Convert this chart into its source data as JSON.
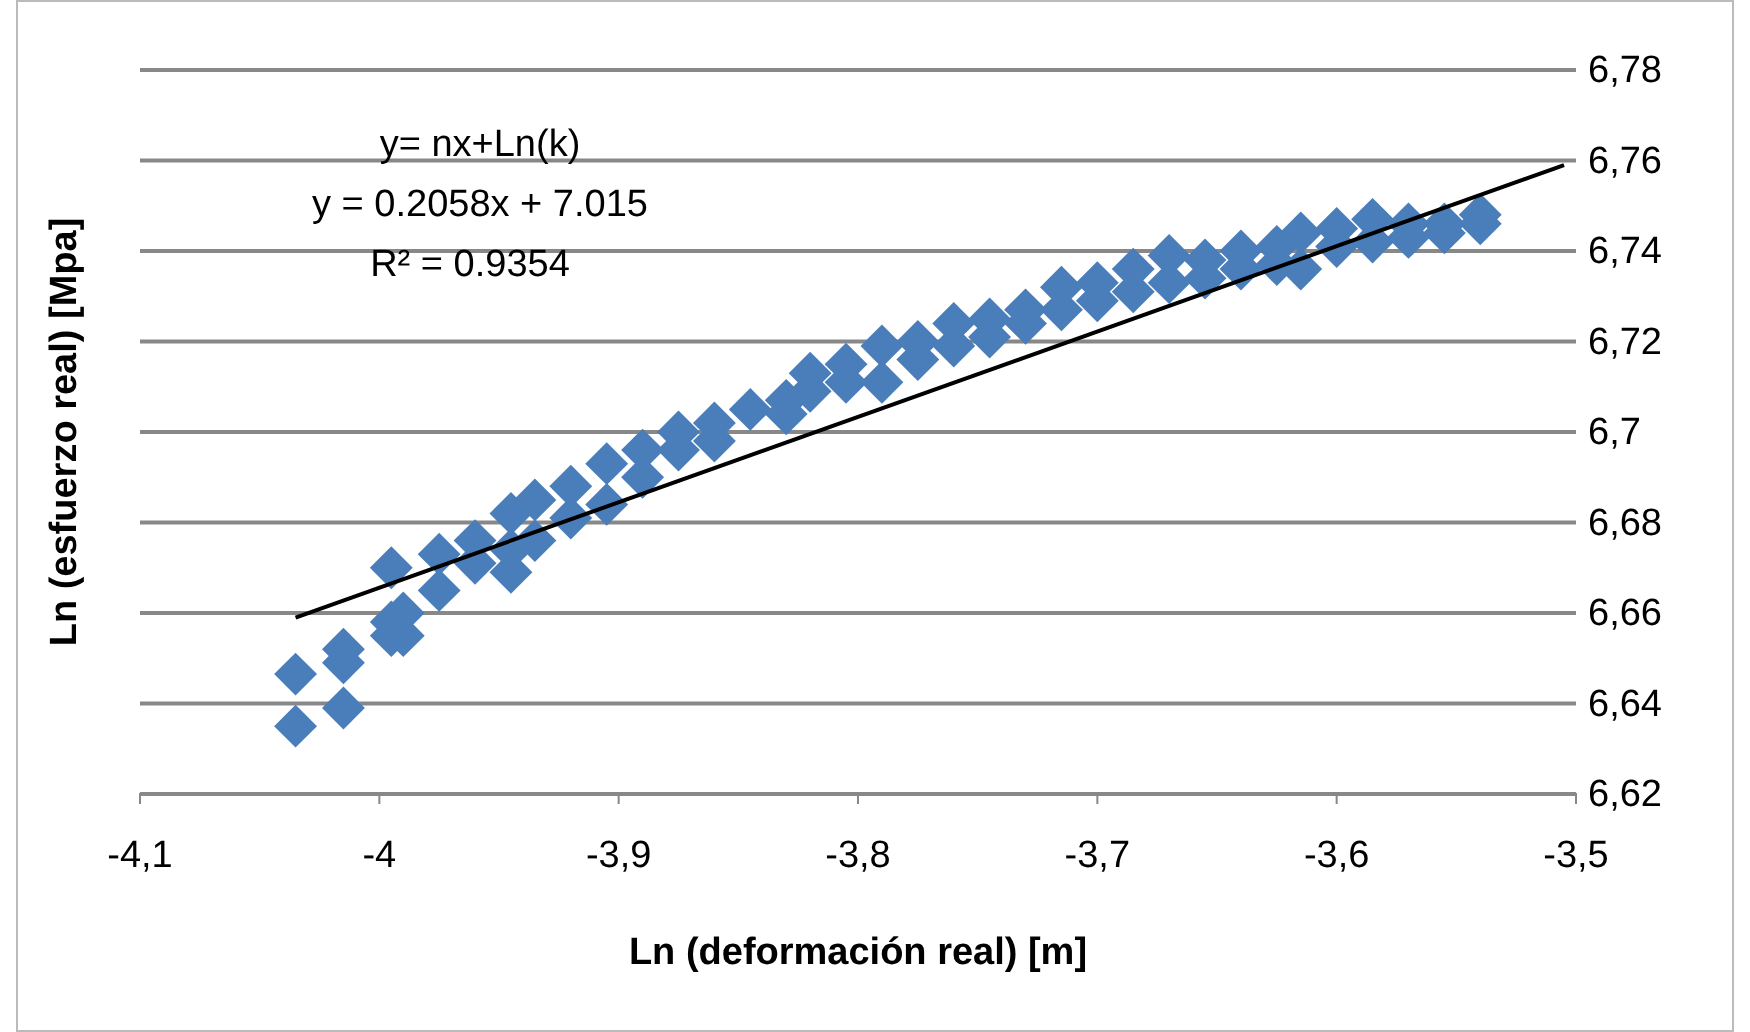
{
  "chart_data": {
    "type": "scatter",
    "xlabel": "Ln (deformación real) [m]",
    "ylabel": "Ln (esfuerzo real)  [Mpa]",
    "xlim": [
      -4.1,
      -3.5
    ],
    "xticks": [
      {
        "value": -4.1,
        "label": "-4,1"
      },
      {
        "value": -4,
        "label": "-4"
      },
      {
        "value": -3.9,
        "label": "-3,9"
      },
      {
        "value": -3.8,
        "label": "-3,8"
      },
      {
        "value": -3.7,
        "label": "-3,7"
      },
      {
        "value": -3.6,
        "label": "-3,6"
      },
      {
        "value": -3.5,
        "label": "-3,5"
      }
    ],
    "ylim": [
      6.62,
      6.78
    ],
    "yticks": [
      {
        "value": 6.62,
        "label": "6,62"
      },
      {
        "value": 6.64,
        "label": "6,64"
      },
      {
        "value": 6.66,
        "label": "6,66"
      },
      {
        "value": 6.68,
        "label": "6,68"
      },
      {
        "value": 6.7,
        "label": "6,7"
      },
      {
        "value": 6.72,
        "label": "6,72"
      },
      {
        "value": 6.74,
        "label": "6,74"
      },
      {
        "value": 6.76,
        "label": "6,76"
      },
      {
        "value": 6.78,
        "label": "6,78"
      }
    ],
    "grid": "y",
    "marker": "diamond",
    "annotations": [
      "y= nx+Ln(k)",
      "y = 0.2058x + 7.015",
      "R² = 0.9354"
    ],
    "series": [
      {
        "color": "#4a7ebb",
        "x": [
          -4.035,
          -4.035,
          -4.015,
          -4.015,
          -4.015,
          -3.995,
          -3.995,
          -3.995,
          -3.99,
          -3.99,
          -3.975,
          -3.975,
          -3.96,
          -3.96,
          -3.945,
          -3.945,
          -3.945,
          -3.935,
          -3.935,
          -3.92,
          -3.92,
          -3.905,
          -3.905,
          -3.89,
          -3.89,
          -3.875,
          -3.875,
          -3.86,
          -3.86,
          -3.845,
          -3.83,
          -3.83,
          -3.82,
          -3.82,
          -3.805,
          -3.805,
          -3.79,
          -3.79,
          -3.775,
          -3.775,
          -3.76,
          -3.76,
          -3.745,
          -3.745,
          -3.73,
          -3.73,
          -3.715,
          -3.715,
          -3.7,
          -3.7,
          -3.685,
          -3.685,
          -3.67,
          -3.67,
          -3.655,
          -3.655,
          -3.64,
          -3.64,
          -3.625,
          -3.625,
          -3.615,
          -3.615,
          -3.6,
          -3.6,
          -3.585,
          -3.585,
          -3.57,
          -3.57,
          -3.555,
          -3.555,
          -3.54,
          -3.54
        ],
        "values": [
          6.6465,
          6.635,
          6.652,
          6.649,
          6.639,
          6.658,
          6.655,
          6.67,
          6.66,
          6.655,
          6.673,
          6.665,
          6.676,
          6.671,
          6.682,
          6.669,
          6.674,
          6.685,
          6.676,
          6.688,
          6.681,
          6.693,
          6.684,
          6.696,
          6.69,
          6.7,
          6.696,
          6.702,
          6.698,
          6.705,
          6.707,
          6.704,
          6.713,
          6.709,
          6.715,
          6.711,
          6.719,
          6.711,
          6.72,
          6.716,
          6.724,
          6.719,
          6.725,
          6.721,
          6.727,
          6.724,
          6.732,
          6.727,
          6.733,
          6.729,
          6.736,
          6.731,
          6.739,
          6.733,
          6.738,
          6.734,
          6.74,
          6.736,
          6.741,
          6.737,
          6.744,
          6.736,
          6.745,
          6.741,
          6.747,
          6.742,
          6.746,
          6.743,
          6.746,
          6.744,
          6.748,
          6.746
        ]
      },
      {
        "type": "line",
        "color": "#000000",
        "marker": "none",
        "line_style": "solid",
        "x": [
          -4.035,
          -3.505
        ],
        "values": [
          6.659,
          6.759
        ]
      }
    ]
  }
}
